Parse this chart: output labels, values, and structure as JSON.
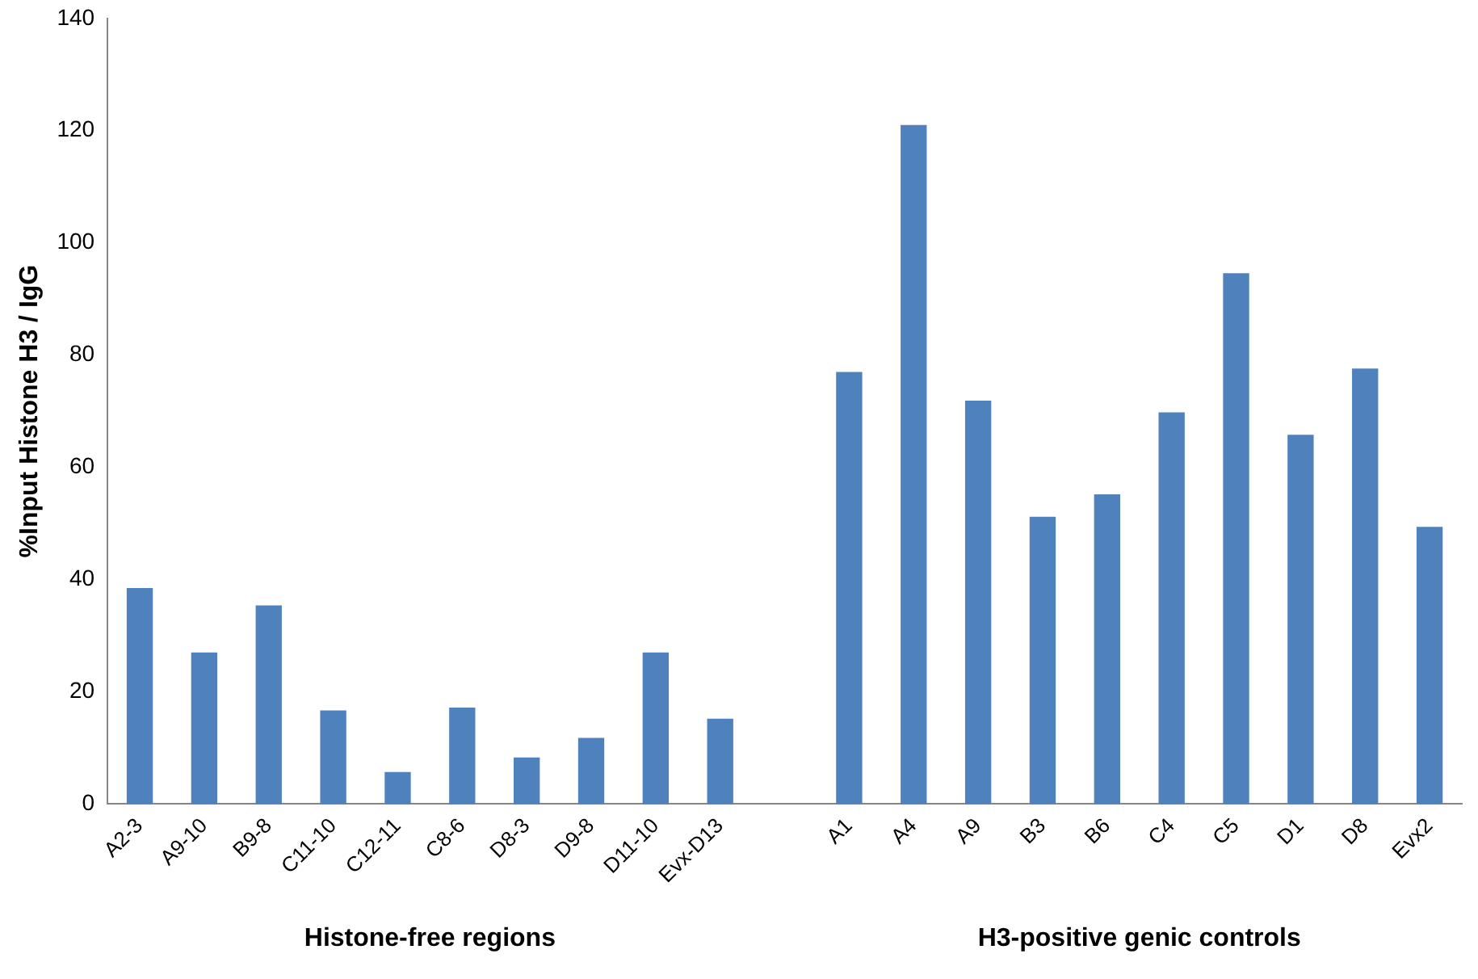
{
  "chart_data": {
    "type": "bar",
    "ylabel": "%Input Histone H3 / IgG",
    "categories": [
      "A2-3",
      "A9-10",
      "B9-8",
      "C11-10",
      "C12-11",
      "C8-6",
      "D8-3",
      "D9-8",
      "D11-10",
      "Evx-D13",
      null,
      "A1",
      "A4",
      "A9",
      "B3",
      "B6",
      "C4",
      "C5",
      "D1",
      "D8",
      "Evx2"
    ],
    "values": [
      38.5,
      27,
      35.4,
      16.7,
      5.7,
      17.2,
      8.3,
      11.8,
      27,
      15.2,
      null,
      77,
      121,
      71.9,
      51.2,
      55.2,
      69.8,
      94.6,
      65.8,
      77.6,
      49.4
    ],
    "color": "#4f81bd",
    "ylim": [
      0,
      140
    ],
    "yticks": [
      0,
      20,
      40,
      60,
      80,
      100,
      120,
      140
    ],
    "grid": false,
    "legend": false,
    "annotations": [
      "Histone-free regions",
      "H3-positive genic controls"
    ]
  }
}
